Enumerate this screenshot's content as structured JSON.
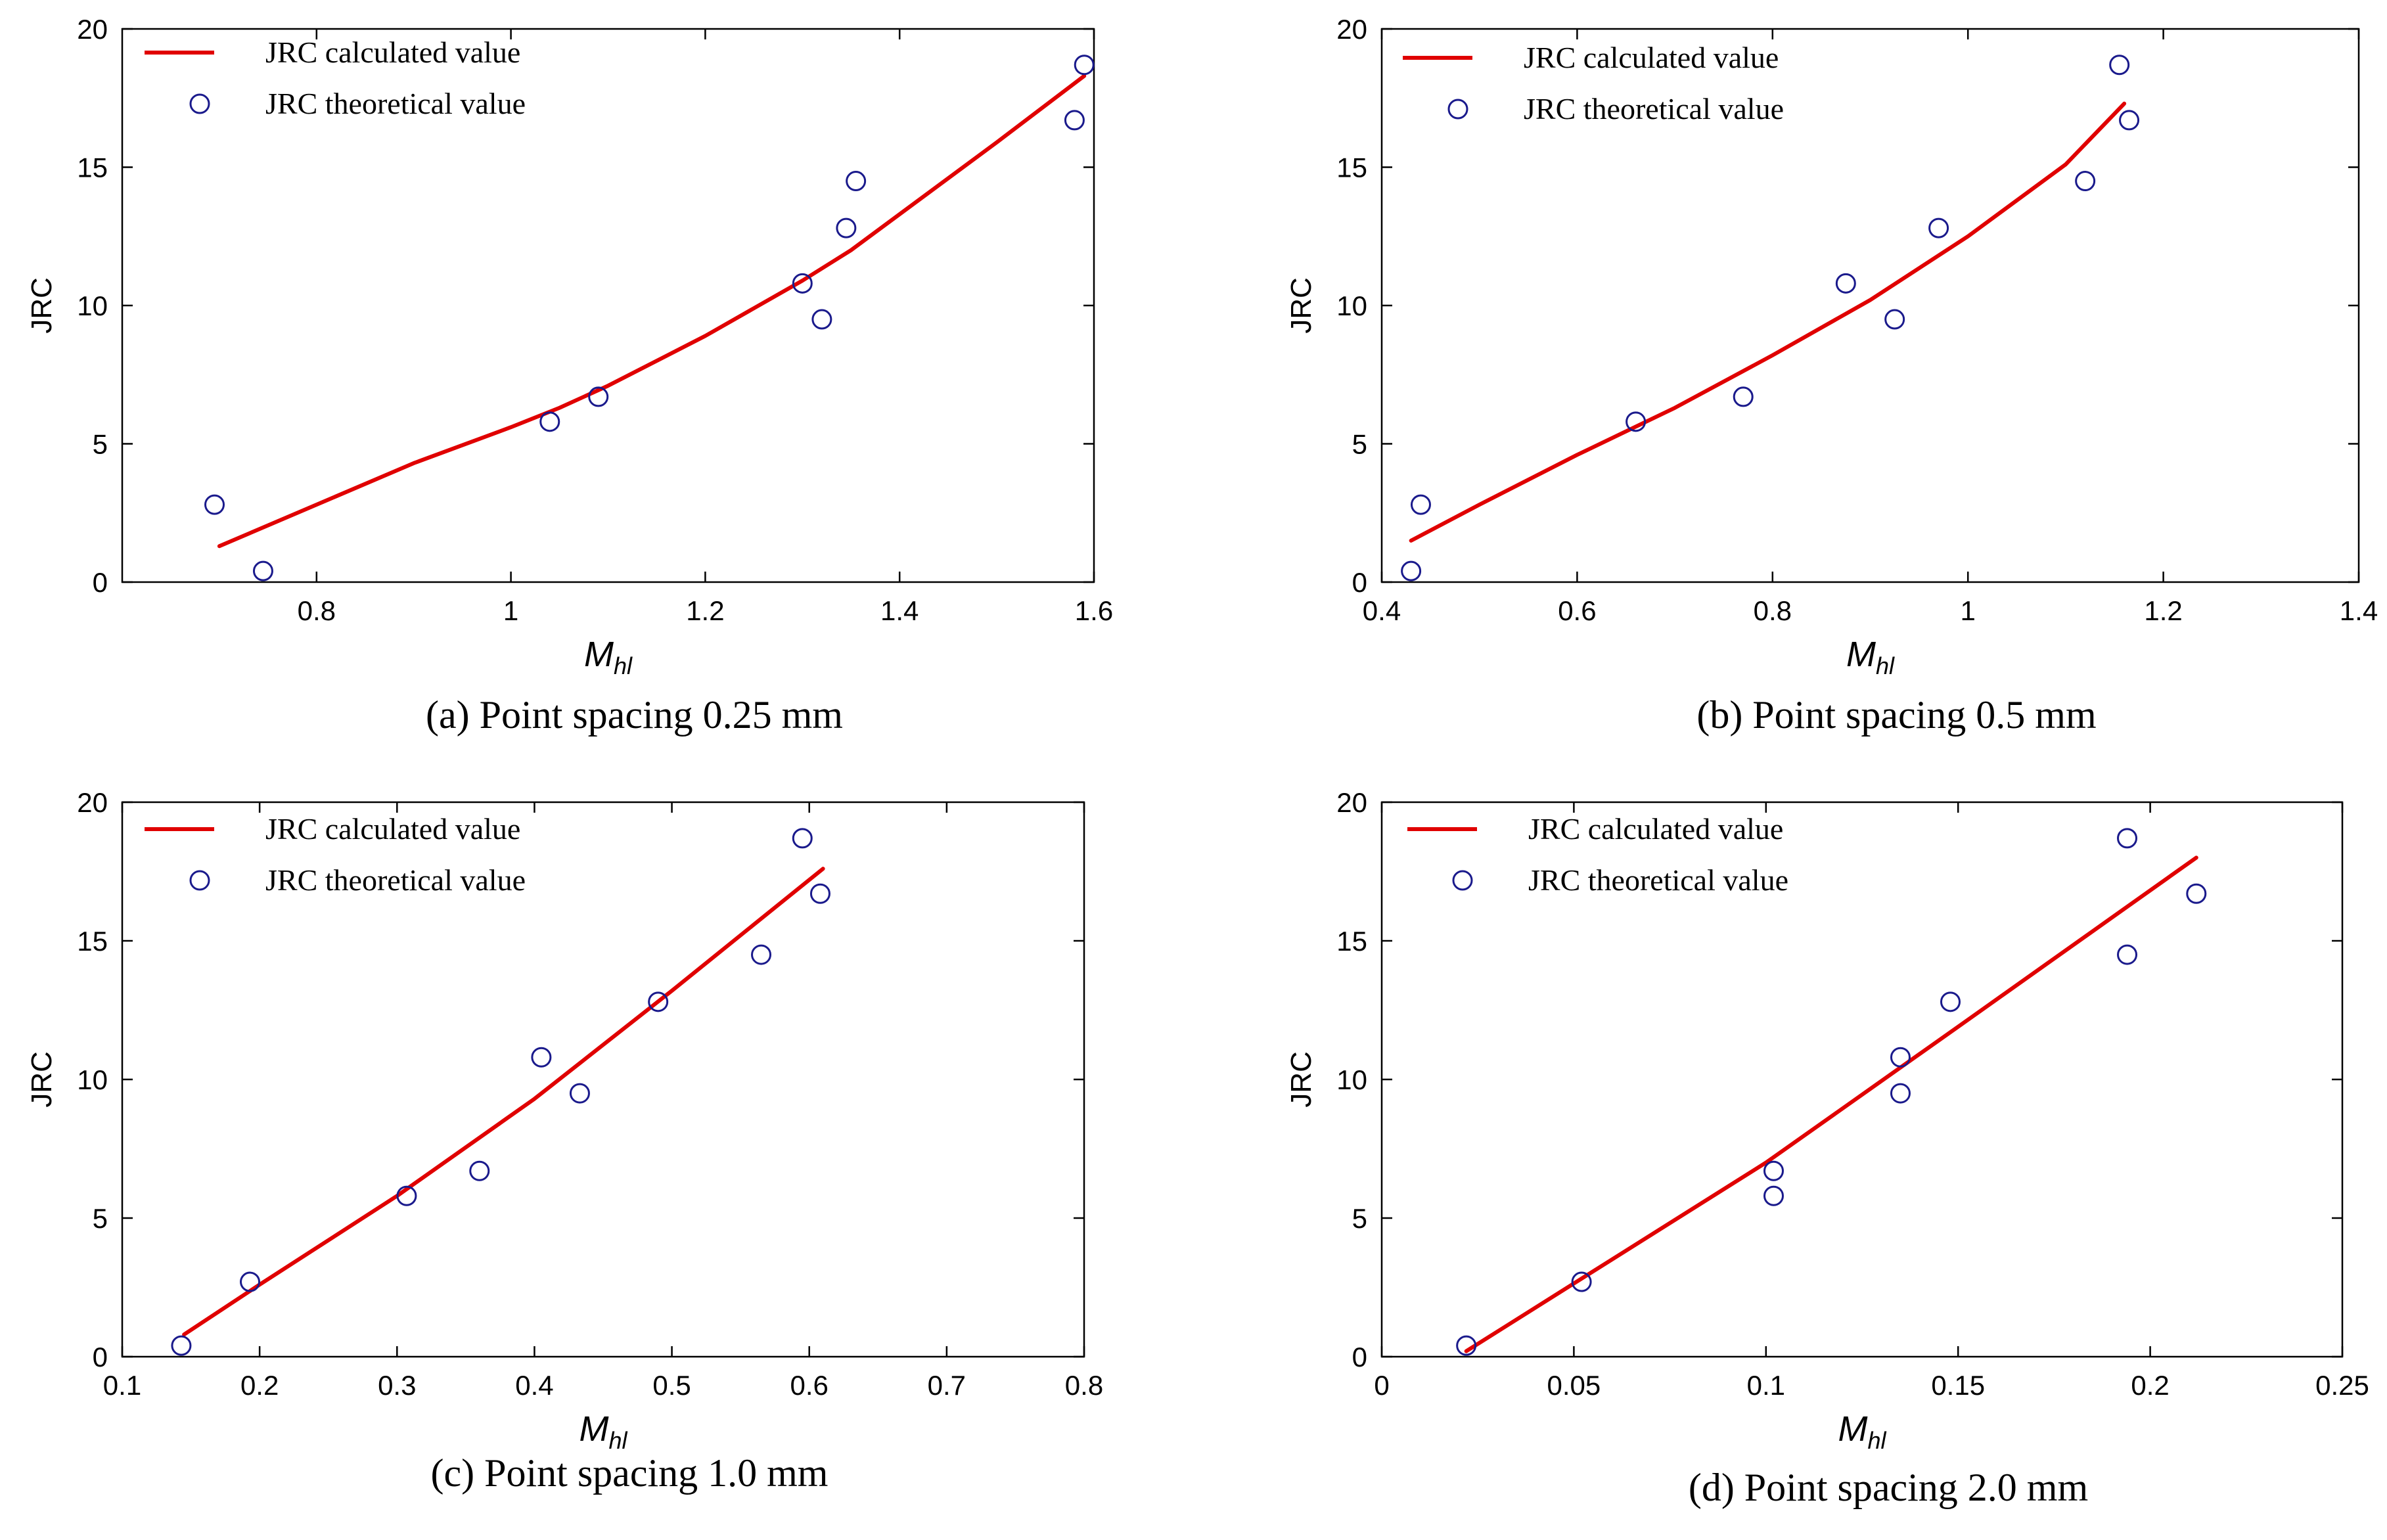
{
  "figure": {
    "panels": [
      {
        "id": "a",
        "caption": "(a) Point spacing 0.25 mm"
      },
      {
        "id": "b",
        "caption": "(b) Point spacing 0.5 mm"
      },
      {
        "id": "c",
        "caption": "(c) Point spacing 1.0 mm"
      },
      {
        "id": "d",
        "caption": "(d) Point spacing 2.0 mm"
      }
    ]
  },
  "colors": {
    "line": "#e00000",
    "marker": "#1a1a8c",
    "axis": "#000000"
  },
  "chart_data": [
    {
      "type": "scatter",
      "title": "(a) Point spacing 0.25 mm",
      "xlabel": "M",
      "xlabel_sub": "hl",
      "ylabel": "JRC",
      "xlim": [
        0.6,
        1.6
      ],
      "ylim": [
        0,
        20
      ],
      "xticks": [
        "0.8",
        "1",
        "1.2",
        "1.4",
        "1.6"
      ],
      "xtick_values": [
        0.8,
        1.0,
        1.2,
        1.4,
        1.6
      ],
      "yticks": [
        "0",
        "5",
        "10",
        "15",
        "20"
      ],
      "ytick_values": [
        0,
        5,
        10,
        15,
        20
      ],
      "legend": [
        "JRC calculated value",
        "JRC theoretical value"
      ],
      "legend_position": "top-left",
      "series": [
        {
          "name": "JRC calculated value",
          "kind": "line",
          "x": [
            0.7,
            0.8,
            0.9,
            1.0,
            1.05,
            1.1,
            1.2,
            1.3,
            1.35,
            1.4,
            1.5,
            1.59
          ],
          "y": [
            1.3,
            2.8,
            4.3,
            5.6,
            6.3,
            7.1,
            8.9,
            10.9,
            12.0,
            13.3,
            15.9,
            18.3
          ]
        },
        {
          "name": "JRC theoretical value",
          "kind": "points",
          "x": [
            0.695,
            0.745,
            1.04,
            1.09,
            1.3,
            1.32,
            1.345,
            1.355,
            1.58,
            1.59
          ],
          "y": [
            2.8,
            0.4,
            5.8,
            6.7,
            10.8,
            9.5,
            12.8,
            14.5,
            16.7,
            18.7
          ]
        }
      ]
    },
    {
      "type": "scatter",
      "title": "(b) Point spacing 0.5 mm",
      "xlabel": "M",
      "xlabel_sub": "hl",
      "ylabel": "JRC",
      "xlim": [
        0.4,
        1.4
      ],
      "ylim": [
        0,
        20
      ],
      "xticks": [
        "0.4",
        "0.6",
        "0.8",
        "1",
        "1.2",
        "1.4"
      ],
      "xtick_values": [
        0.4,
        0.6,
        0.8,
        1.0,
        1.2,
        1.4
      ],
      "yticks": [
        "0",
        "5",
        "10",
        "15",
        "20"
      ],
      "ytick_values": [
        0,
        5,
        10,
        15,
        20
      ],
      "legend": [
        "JRC calculated value",
        "JRC theoretical value"
      ],
      "legend_position": "top-left",
      "series": [
        {
          "name": "JRC calculated value",
          "kind": "line",
          "x": [
            0.43,
            0.5,
            0.6,
            0.7,
            0.8,
            0.9,
            1.0,
            1.1,
            1.16
          ],
          "y": [
            1.5,
            2.8,
            4.6,
            6.3,
            8.2,
            10.2,
            12.5,
            15.1,
            17.3
          ]
        },
        {
          "name": "JRC theoretical value",
          "kind": "points",
          "x": [
            0.43,
            0.44,
            0.66,
            0.77,
            0.875,
            0.925,
            0.97,
            1.12,
            1.155,
            1.165
          ],
          "y": [
            0.4,
            2.8,
            5.8,
            6.7,
            10.8,
            9.5,
            12.8,
            14.5,
            18.7,
            16.7
          ]
        }
      ]
    },
    {
      "type": "scatter",
      "title": "(c) Point spacing 1.0 mm",
      "xlabel": "M",
      "xlabel_sub": "hl",
      "ylabel": "JRC",
      "xlim": [
        0.1,
        0.8
      ],
      "ylim": [
        0,
        20
      ],
      "xticks": [
        "0.1",
        "0.2",
        "0.3",
        "0.4",
        "0.5",
        "0.6",
        "0.7",
        "0.8"
      ],
      "xtick_values": [
        0.1,
        0.2,
        0.3,
        0.4,
        0.5,
        0.6,
        0.7,
        0.8
      ],
      "yticks": [
        "0",
        "5",
        "10",
        "15",
        "20"
      ],
      "ytick_values": [
        0,
        5,
        10,
        15,
        20
      ],
      "legend": [
        "JRC calculated value",
        "JRC theoretical value"
      ],
      "legend_position": "top-left",
      "series": [
        {
          "name": "JRC calculated value",
          "kind": "line",
          "x": [
            0.145,
            0.2,
            0.3,
            0.4,
            0.5,
            0.61
          ],
          "y": [
            0.8,
            2.6,
            5.8,
            9.3,
            13.2,
            17.6
          ]
        },
        {
          "name": "JRC theoretical value",
          "kind": "points",
          "x": [
            0.143,
            0.193,
            0.307,
            0.36,
            0.405,
            0.433,
            0.49,
            0.565,
            0.595,
            0.608
          ],
          "y": [
            0.4,
            2.7,
            5.8,
            6.7,
            10.8,
            9.5,
            12.8,
            14.5,
            18.7,
            16.7
          ]
        }
      ]
    },
    {
      "type": "scatter",
      "title": "(d) Point spacing 2.0 mm",
      "xlabel": "M",
      "xlabel_sub": "hl",
      "ylabel": "JRC",
      "xlim": [
        0,
        0.25
      ],
      "ylim": [
        0,
        20
      ],
      "xticks": [
        "0",
        "0.05",
        "0.1",
        "0.15",
        "0.2",
        "0.25"
      ],
      "xtick_values": [
        0,
        0.05,
        0.1,
        0.15,
        0.2,
        0.25
      ],
      "yticks": [
        "0",
        "5",
        "10",
        "15",
        "20"
      ],
      "ytick_values": [
        0,
        5,
        10,
        15,
        20
      ],
      "legend": [
        "JRC calculated value",
        "JRC theoretical value"
      ],
      "legend_position": "top-left",
      "series": [
        {
          "name": "JRC calculated value",
          "kind": "line",
          "x": [
            0.022,
            0.1,
            0.15,
            0.212
          ],
          "y": [
            0.2,
            7.0,
            11.9,
            18.0
          ]
        },
        {
          "name": "JRC theoretical value",
          "kind": "points",
          "x": [
            0.022,
            0.052,
            0.102,
            0.102,
            0.135,
            0.135,
            0.148,
            0.194,
            0.194,
            0.212
          ],
          "y": [
            0.4,
            2.7,
            5.8,
            6.7,
            9.5,
            10.8,
            12.8,
            14.5,
            18.7,
            16.7
          ]
        }
      ]
    }
  ]
}
